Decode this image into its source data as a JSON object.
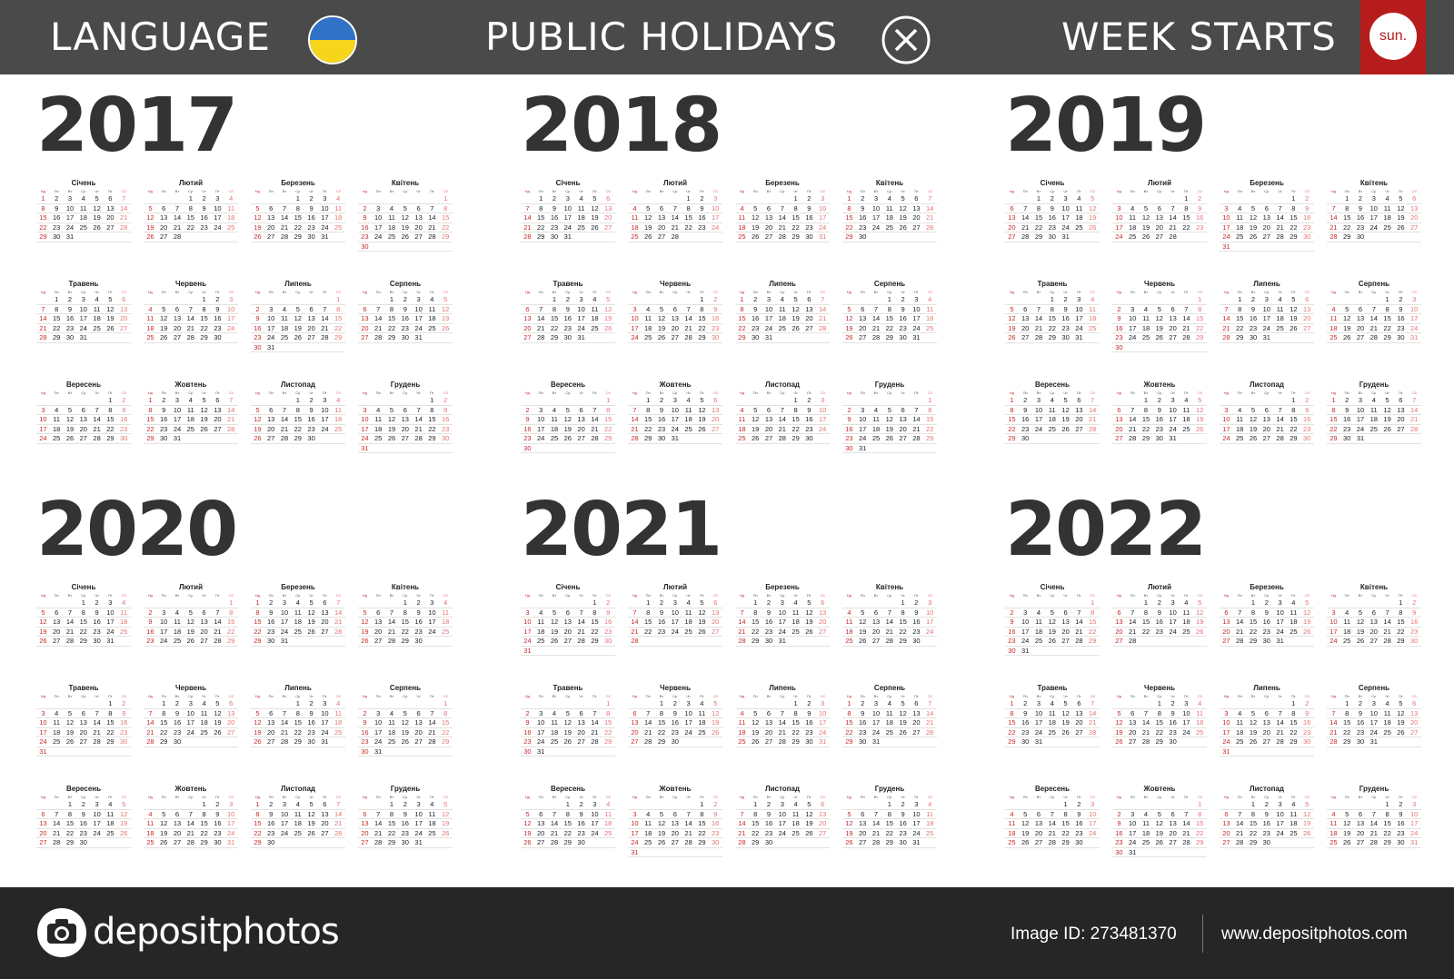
{
  "header": {
    "language_label": "LANGUAGE",
    "language_flag": "ukraine-flag",
    "holidays_label": "PUBLIC HOLIDAYS",
    "holidays_icon": "x-circle-icon",
    "week_starts_label": "WEEK STARTS",
    "week_start_badge": "sun.",
    "colors": {
      "bar": "#4a4a4a",
      "accent": "#b71c1c",
      "flag_blue": "#2f72c6",
      "flag_yellow": "#f7d51d"
    }
  },
  "calendar": {
    "day_names": [
      "Нд",
      "Пн",
      "Вт",
      "Ср",
      "Чт",
      "Пт",
      "Сб"
    ],
    "month_names": [
      "Січень",
      "Лютий",
      "Березень",
      "Квітень",
      "Травень",
      "Червень",
      "Липень",
      "Серпень",
      "Вересень",
      "Жовтень",
      "Листопад",
      "Грудень"
    ],
    "years": [
      "2017",
      "2018",
      "2019",
      "2020",
      "2021",
      "2022"
    ],
    "colors": {
      "sunday": "#c62828",
      "saturday": "#e57373",
      "text": "#222222"
    }
  },
  "footer": {
    "brand": "depositphotos",
    "image_id": "Image ID: 273481370",
    "site": "www.depositphotos.com"
  }
}
